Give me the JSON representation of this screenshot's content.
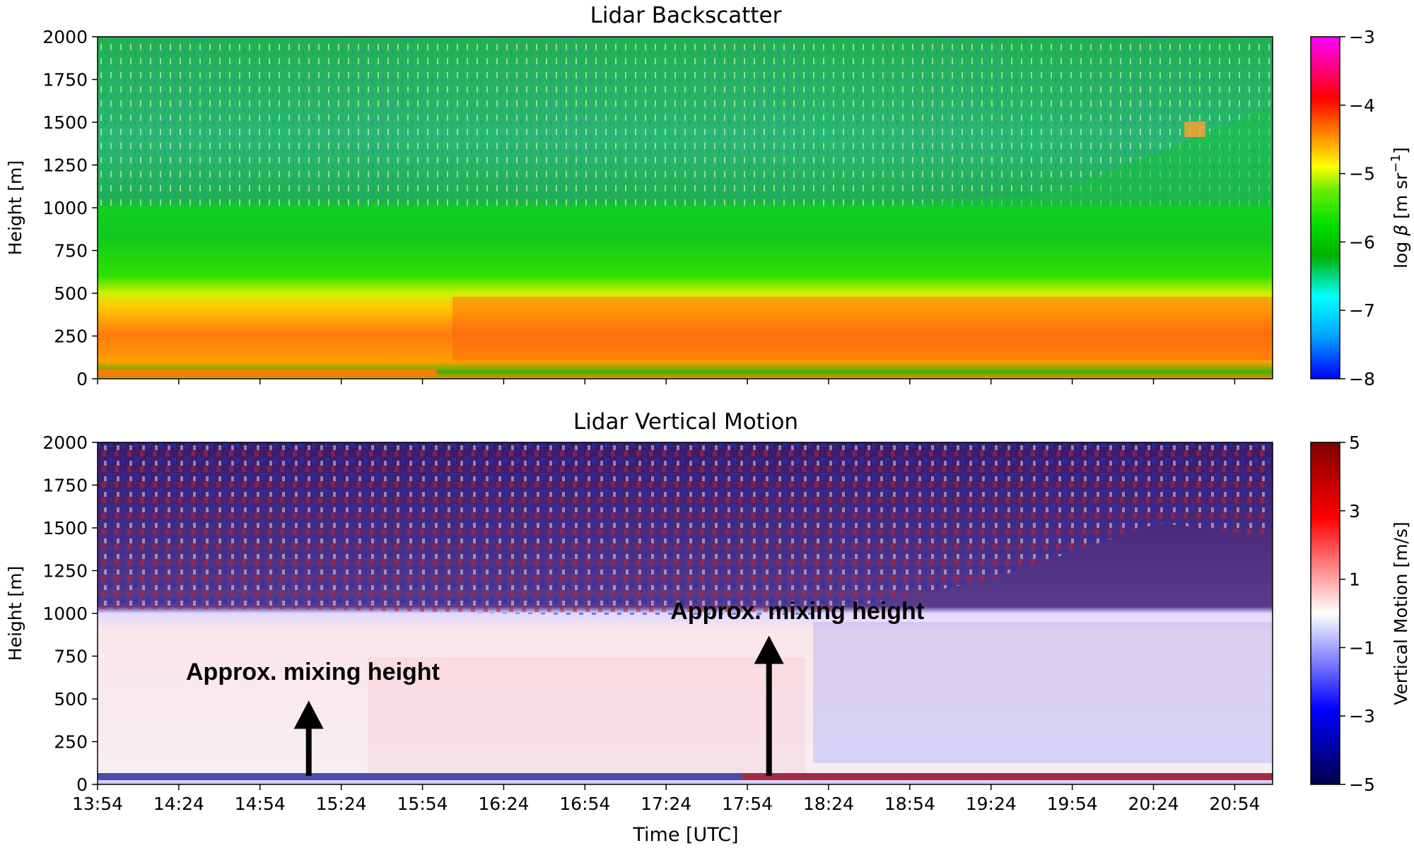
{
  "chart_data": [
    {
      "type": "heatmap",
      "title": "Lidar Backscatter",
      "xlabel": "",
      "ylabel": "Height [m]",
      "x_ticks": [
        "13:54",
        "14:24",
        "14:54",
        "15:24",
        "15:54",
        "16:24",
        "16:54",
        "17:24",
        "17:54",
        "18:24",
        "18:54",
        "19:24",
        "19:54",
        "20:24",
        "20:54"
      ],
      "x_tick_labels_shown": false,
      "xlim": [
        "13:54",
        "21:08"
      ],
      "y_ticks": [
        "0",
        "250",
        "500",
        "750",
        "1000",
        "1250",
        "1500",
        "1750",
        "2000"
      ],
      "ylim": [
        0,
        2000
      ],
      "colorbar": {
        "label": "log β [m sr⁻¹]",
        "label_parts": {
          "prefix": "log ",
          "symbol": "β",
          "mid": " [m sr",
          "sup": "−1",
          "suffix": "]"
        },
        "ticks": [
          "−3",
          "−4",
          "−5",
          "−6",
          "−7",
          "−8"
        ],
        "range": [
          -8,
          -3
        ],
        "colormap": [
          "#0000ff",
          "#00aaff",
          "#00ffff",
          "#00b000",
          "#00e000",
          "#66ee00",
          "#ffff00",
          "#ff9900",
          "#ff0000",
          "#ff00ff"
        ]
      },
      "layers_description_values": {
        "surface_layer_logbeta": -4.6,
        "aerosol_layer_base_m": 100,
        "aerosol_layer_top_m": 480,
        "aerosol_layer_logbeta": -4.5,
        "boundary_layer_top_m": 1000,
        "free_troposphere_logbeta": -6.6
      }
    },
    {
      "type": "heatmap",
      "title": "Lidar Vertical Motion",
      "xlabel": "Time [UTC]",
      "ylabel": "Height [m]",
      "x_ticks": [
        "13:54",
        "14:24",
        "14:54",
        "15:24",
        "15:54",
        "16:24",
        "16:54",
        "17:24",
        "17:54",
        "18:24",
        "18:54",
        "19:24",
        "19:54",
        "20:24",
        "20:54"
      ],
      "xlim": [
        "13:54",
        "21:08"
      ],
      "y_ticks": [
        "0",
        "250",
        "500",
        "750",
        "1000",
        "1250",
        "1500",
        "1750",
        "2000"
      ],
      "ylim": [
        0,
        2000
      ],
      "colorbar": {
        "label": "Vertical Motion [m/s]",
        "ticks": [
          "5",
          "3",
          "1",
          "−1",
          "−3",
          "−5"
        ],
        "range": [
          -5,
          5
        ],
        "colormap": [
          "#00004c",
          "#0000ff",
          "#ffffff",
          "#ff0000",
          "#800000"
        ]
      },
      "annotations": [
        {
          "text": "Approx. mixing height",
          "arrow_time": "15:12",
          "arrow_from_m": 50,
          "arrow_to_m": 490
        },
        {
          "text": "Approx. mixing height",
          "arrow_time": "18:02",
          "arrow_from_m": 50,
          "arrow_to_m": 870
        }
      ]
    }
  ]
}
